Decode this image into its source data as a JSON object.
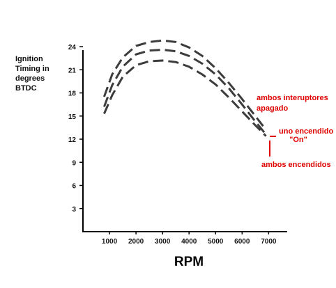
{
  "chart_data": {
    "type": "line",
    "xlabel": "RPM",
    "ylabel_lines": [
      "Ignition",
      "Timing in",
      "degrees",
      "BTDC"
    ],
    "x_ticks": [
      1000,
      2000,
      3000,
      4000,
      5000,
      6000,
      7000
    ],
    "x_tick_labels": [
      "1000",
      "2000",
      "3000",
      "4000",
      "5000",
      "6000",
      "7000"
    ],
    "y_ticks": [
      3,
      6,
      9,
      12,
      15,
      18,
      21,
      24
    ],
    "y_tick_labels": [
      "3",
      "6",
      "9",
      "12",
      "15",
      "18",
      "21",
      "24"
    ],
    "xlim": [
      0,
      7700
    ],
    "ylim": [
      0,
      25
    ],
    "grid": false,
    "series": [
      {
        "x": [
          800,
          1100,
          1500,
          2000,
          2500,
          3000,
          3500,
          4000,
          4500,
          5000,
          5500,
          6000,
          6500,
          6900
        ],
        "y": [
          17.5,
          20.4,
          22.6,
          24.1,
          24.6,
          24.8,
          24.6,
          23.9,
          22.8,
          21.2,
          19.3,
          17.2,
          15.0,
          13.2
        ]
      },
      {
        "x": [
          800,
          1100,
          1500,
          2000,
          2500,
          3000,
          3500,
          4000,
          4500,
          5000,
          5500,
          6000,
          6500,
          6900
        ],
        "y": [
          16.2,
          19.0,
          21.4,
          23.0,
          23.5,
          23.6,
          23.4,
          22.8,
          21.8,
          20.4,
          18.6,
          16.5,
          14.3,
          12.6
        ]
      },
      {
        "x": [
          800,
          1100,
          1500,
          2000,
          2500,
          3000,
          3500,
          4000,
          4500,
          5000,
          5500,
          6000,
          6500,
          6900
        ],
        "y": [
          15.3,
          17.7,
          20.1,
          21.6,
          22.1,
          22.2,
          22.0,
          21.4,
          20.4,
          19.1,
          17.4,
          15.6,
          13.8,
          12.4
        ]
      }
    ],
    "annotations": [
      {
        "id": "both-off",
        "lines": [
          "ambos interuptores",
          "apagado"
        ],
        "color": "#e00000"
      },
      {
        "id": "one-on",
        "lines": [
          "uno encendido",
          "\"On\""
        ],
        "color": "#e00000"
      },
      {
        "id": "both-on",
        "lines": [
          "ambos encendidos"
        ],
        "color": "#e00000"
      }
    ],
    "colors": {
      "series": "#3c3c3c",
      "axis": "#000000",
      "annotation": "#e00000"
    }
  }
}
